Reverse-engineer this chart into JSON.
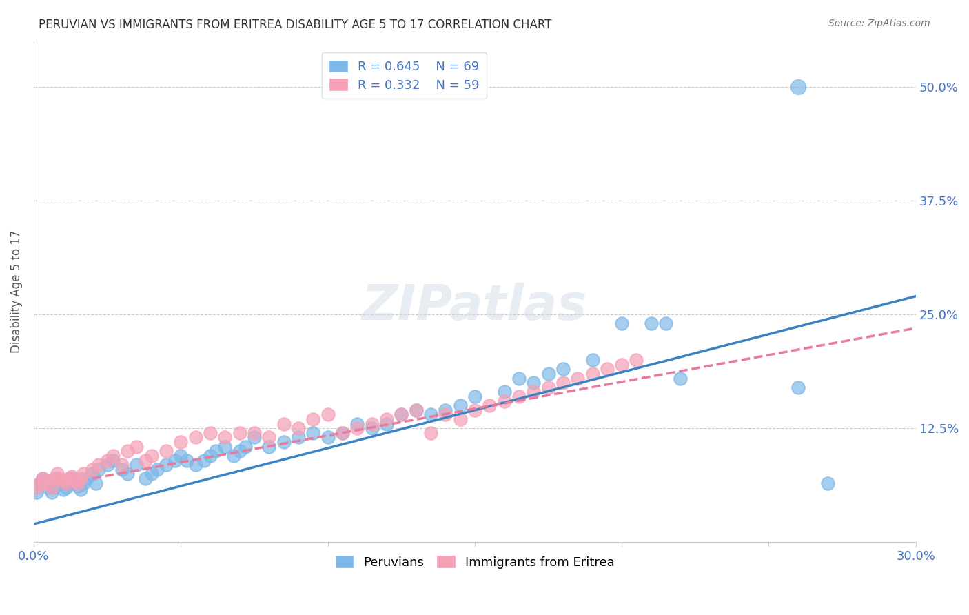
{
  "title": "PERUVIAN VS IMMIGRANTS FROM ERITREA DISABILITY AGE 5 TO 17 CORRELATION CHART",
  "source": "Source: ZipAtlas.com",
  "xlabel": "",
  "ylabel": "Disability Age 5 to 17",
  "xlim": [
    0.0,
    0.3
  ],
  "ylim": [
    0.0,
    0.55
  ],
  "xticks": [
    0.0,
    0.05,
    0.1,
    0.15,
    0.2,
    0.25,
    0.3
  ],
  "xtick_labels": [
    "0.0%",
    "",
    "",
    "",
    "",
    "",
    "30.0%"
  ],
  "ytick_labels": [
    "",
    "12.5%",
    "25.0%",
    "37.5%",
    "50.0%"
  ],
  "yticks": [
    0.0,
    0.125,
    0.25,
    0.375,
    0.5
  ],
  "watermark": "ZIPatlas",
  "legend_R1": "R = 0.645",
  "legend_N1": "N = 69",
  "legend_R2": "R = 0.332",
  "legend_N2": "N = 59",
  "blue_color": "#7eb8e8",
  "pink_color": "#f5a0b5",
  "blue_line_color": "#3b82c4",
  "pink_line_color": "#e87a9a",
  "label_color": "#4472c4",
  "blue_scatter_x": [
    0.001,
    0.002,
    0.003,
    0.004,
    0.005,
    0.006,
    0.007,
    0.008,
    0.009,
    0.01,
    0.011,
    0.012,
    0.013,
    0.014,
    0.015,
    0.016,
    0.017,
    0.018,
    0.02,
    0.021,
    0.022,
    0.025,
    0.027,
    0.03,
    0.032,
    0.035,
    0.038,
    0.04,
    0.042,
    0.045,
    0.048,
    0.05,
    0.052,
    0.055,
    0.058,
    0.06,
    0.062,
    0.065,
    0.068,
    0.07,
    0.072,
    0.075,
    0.08,
    0.085,
    0.09,
    0.095,
    0.1,
    0.105,
    0.11,
    0.115,
    0.12,
    0.125,
    0.13,
    0.135,
    0.14,
    0.145,
    0.15,
    0.16,
    0.165,
    0.17,
    0.175,
    0.18,
    0.19,
    0.2,
    0.21,
    0.215,
    0.22,
    0.26,
    0.27
  ],
  "blue_scatter_y": [
    0.055,
    0.065,
    0.07,
    0.068,
    0.06,
    0.055,
    0.06,
    0.07,
    0.065,
    0.058,
    0.06,
    0.065,
    0.07,
    0.068,
    0.062,
    0.058,
    0.065,
    0.07,
    0.075,
    0.065,
    0.08,
    0.085,
    0.09,
    0.08,
    0.075,
    0.085,
    0.07,
    0.075,
    0.08,
    0.085,
    0.09,
    0.095,
    0.09,
    0.085,
    0.09,
    0.095,
    0.1,
    0.105,
    0.095,
    0.1,
    0.105,
    0.115,
    0.105,
    0.11,
    0.115,
    0.12,
    0.115,
    0.12,
    0.13,
    0.125,
    0.13,
    0.14,
    0.145,
    0.14,
    0.145,
    0.15,
    0.16,
    0.165,
    0.18,
    0.175,
    0.185,
    0.19,
    0.2,
    0.24,
    0.24,
    0.24,
    0.18,
    0.17,
    0.065
  ],
  "pink_scatter_x": [
    0.001,
    0.002,
    0.003,
    0.004,
    0.005,
    0.006,
    0.007,
    0.008,
    0.009,
    0.01,
    0.011,
    0.012,
    0.013,
    0.014,
    0.015,
    0.016,
    0.017,
    0.02,
    0.022,
    0.025,
    0.027,
    0.03,
    0.032,
    0.035,
    0.038,
    0.04,
    0.045,
    0.05,
    0.055,
    0.06,
    0.065,
    0.07,
    0.075,
    0.08,
    0.085,
    0.09,
    0.095,
    0.1,
    0.105,
    0.11,
    0.115,
    0.12,
    0.125,
    0.13,
    0.135,
    0.14,
    0.145,
    0.15,
    0.155,
    0.16,
    0.165,
    0.17,
    0.175,
    0.18,
    0.185,
    0.19,
    0.195,
    0.2,
    0.205
  ],
  "pink_scatter_y": [
    0.06,
    0.065,
    0.07,
    0.068,
    0.065,
    0.06,
    0.07,
    0.075,
    0.07,
    0.068,
    0.065,
    0.07,
    0.072,
    0.068,
    0.065,
    0.07,
    0.075,
    0.08,
    0.085,
    0.09,
    0.095,
    0.085,
    0.1,
    0.105,
    0.09,
    0.095,
    0.1,
    0.11,
    0.115,
    0.12,
    0.115,
    0.12,
    0.12,
    0.115,
    0.13,
    0.125,
    0.135,
    0.14,
    0.12,
    0.125,
    0.13,
    0.135,
    0.14,
    0.145,
    0.12,
    0.14,
    0.135,
    0.145,
    0.15,
    0.155,
    0.16,
    0.165,
    0.17,
    0.175,
    0.18,
    0.185,
    0.19,
    0.195,
    0.2
  ],
  "blue_line_x": [
    0.0,
    0.3
  ],
  "blue_line_y_start": 0.02,
  "blue_line_y_end": 0.27,
  "pink_line_x": [
    0.02,
    0.3
  ],
  "pink_line_y_start": 0.07,
  "pink_line_y_end": 0.235
}
